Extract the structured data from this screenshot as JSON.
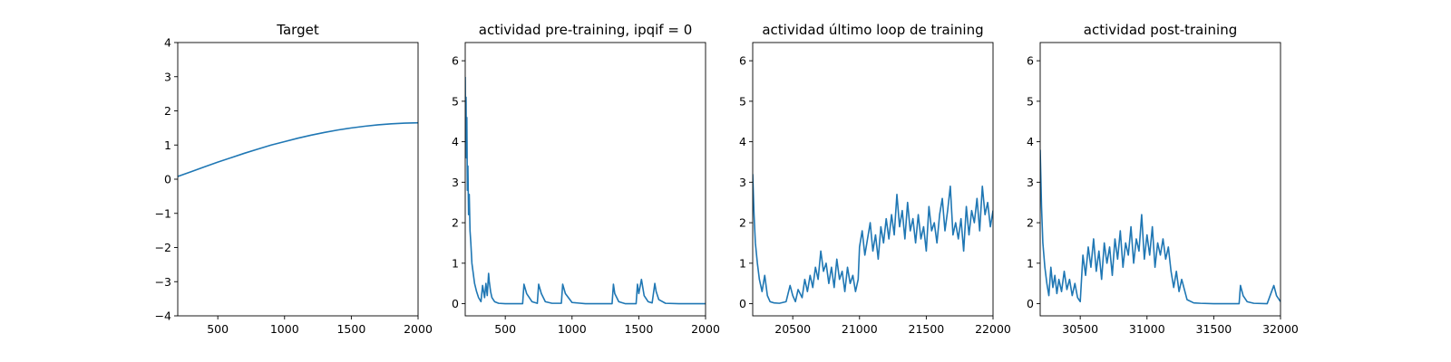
{
  "chart_data": [
    {
      "type": "line",
      "title": "Target",
      "xlim": [
        200,
        2000
      ],
      "ylim": [
        -4,
        4
      ],
      "xticks": [
        500,
        1000,
        1500,
        2000
      ],
      "yticks": [
        -4,
        -3,
        -2,
        -1,
        0,
        1,
        2,
        3,
        4
      ],
      "xtick_labels": [
        "500",
        "1000",
        "1500",
        "2000"
      ],
      "ytick_labels": [
        "−4",
        "−3",
        "−2",
        "−1",
        "0",
        "1",
        "2",
        "3",
        "4"
      ],
      "color": "#1f77b4",
      "series": [
        {
          "x": [
            200,
            300,
            400,
            500,
            600,
            700,
            800,
            900,
            1000,
            1100,
            1200,
            1300,
            1400,
            1500,
            1600,
            1700,
            1800,
            1900,
            2000
          ],
          "y": [
            0.08,
            0.22,
            0.36,
            0.5,
            0.63,
            0.76,
            0.88,
            1.0,
            1.1,
            1.2,
            1.29,
            1.37,
            1.44,
            1.5,
            1.55,
            1.59,
            1.62,
            1.64,
            1.65
          ]
        }
      ]
    },
    {
      "type": "line",
      "title": "actividad pre-training, ipqif = 0",
      "xlim": [
        200,
        2000
      ],
      "ylim": [
        -0.3,
        6.45
      ],
      "xticks": [
        500,
        1000,
        1500,
        2000
      ],
      "yticks": [
        0,
        1,
        2,
        3,
        4,
        5,
        6
      ],
      "xtick_labels": [
        "500",
        "1000",
        "1500",
        "2000"
      ],
      "ytick_labels": [
        "0",
        "1",
        "2",
        "3",
        "4",
        "5",
        "6"
      ],
      "color": "#1f77b4",
      "series": [
        {
          "x": [
            200,
            203,
            206,
            209,
            212,
            216,
            220,
            225,
            230,
            236,
            242,
            250,
            260,
            270,
            285,
            300,
            318,
            330,
            345,
            355,
            365,
            375,
            380,
            390,
            400,
            420,
            450,
            500,
            550,
            600,
            630,
            640,
            660,
            700,
            740,
            750,
            770,
            800,
            850,
            900,
            920,
            930,
            950,
            1000,
            1100,
            1200,
            1300,
            1310,
            1320,
            1350,
            1400,
            1480,
            1490,
            1500,
            1520,
            1540,
            1570,
            1600,
            1620,
            1630,
            1650,
            1700,
            1800,
            1900,
            2000
          ],
          "y": [
            5.6,
            4.0,
            5.1,
            3.6,
            4.6,
            2.8,
            3.4,
            2.2,
            2.7,
            1.8,
            1.5,
            1.0,
            0.75,
            0.5,
            0.3,
            0.15,
            0.05,
            0.45,
            0.15,
            0.5,
            0.2,
            0.75,
            0.55,
            0.3,
            0.15,
            0.05,
            0.01,
            0,
            0,
            0,
            0,
            0.48,
            0.25,
            0.05,
            0.01,
            0.48,
            0.25,
            0.05,
            0.01,
            0.01,
            0.01,
            0.48,
            0.25,
            0.03,
            0,
            0,
            0,
            0.48,
            0.25,
            0.05,
            0,
            0,
            0.48,
            0.25,
            0.6,
            0.2,
            0.05,
            0.02,
            0.5,
            0.3,
            0.1,
            0.01,
            0,
            0,
            0
          ]
        }
      ]
    },
    {
      "type": "line",
      "title": "actividad último loop de training",
      "xlim": [
        20200,
        22000
      ],
      "ylim": [
        -0.3,
        6.45
      ],
      "xticks": [
        20500,
        21000,
        21500,
        22000
      ],
      "yticks": [
        0,
        1,
        2,
        3,
        4,
        5,
        6
      ],
      "xtick_labels": [
        "20500",
        "21000",
        "21500",
        "22000"
      ],
      "ytick_labels": [
        "0",
        "1",
        "2",
        "3",
        "4",
        "5",
        "6"
      ],
      "color": "#1f77b4",
      "series": [
        {
          "x": [
            20200,
            20210,
            20220,
            20235,
            20250,
            20270,
            20290,
            20310,
            20330,
            20360,
            20400,
            20450,
            20480,
            20500,
            20520,
            20540,
            20570,
            20590,
            20610,
            20630,
            20650,
            20670,
            20690,
            20710,
            20730,
            20750,
            20770,
            20790,
            20810,
            20830,
            20850,
            20870,
            20890,
            20910,
            20930,
            20950,
            20970,
            20990,
            21000,
            21020,
            21040,
            21060,
            21080,
            21100,
            21120,
            21140,
            21160,
            21180,
            21200,
            21220,
            21240,
            21260,
            21280,
            21300,
            21320,
            21340,
            21360,
            21380,
            21400,
            21420,
            21440,
            21460,
            21480,
            21500,
            21520,
            21540,
            21560,
            21580,
            21600,
            21620,
            21640,
            21660,
            21680,
            21700,
            21720,
            21740,
            21760,
            21780,
            21800,
            21820,
            21840,
            21860,
            21880,
            21900,
            21920,
            21940,
            21960,
            21980,
            22000
          ],
          "y": [
            3.2,
            2.2,
            1.5,
            1.0,
            0.6,
            0.3,
            0.7,
            0.2,
            0.05,
            0.02,
            0.01,
            0.05,
            0.45,
            0.2,
            0.05,
            0.35,
            0.15,
            0.6,
            0.3,
            0.7,
            0.4,
            0.9,
            0.6,
            1.3,
            0.8,
            1.0,
            0.5,
            0.9,
            0.4,
            1.1,
            0.6,
            0.8,
            0.3,
            0.9,
            0.5,
            0.7,
            0.3,
            0.6,
            1.4,
            1.8,
            1.2,
            1.6,
            2.0,
            1.3,
            1.7,
            1.1,
            1.9,
            1.5,
            2.1,
            1.6,
            2.2,
            1.7,
            2.7,
            1.9,
            2.3,
            1.6,
            2.5,
            1.8,
            2.1,
            1.5,
            2.2,
            1.6,
            1.9,
            1.3,
            2.4,
            1.8,
            2.0,
            1.5,
            2.2,
            2.6,
            1.8,
            2.3,
            2.9,
            1.7,
            2.0,
            1.6,
            2.1,
            1.3,
            2.4,
            1.7,
            2.3,
            2.0,
            2.6,
            1.8,
            2.9,
            2.2,
            2.5,
            1.9,
            2.3
          ]
        }
      ]
    },
    {
      "type": "line",
      "title": "actividad post-training",
      "xlim": [
        30200,
        32000
      ],
      "ylim": [
        -0.3,
        6.45
      ],
      "xticks": [
        30500,
        31000,
        31500,
        32000
      ],
      "yticks": [
        0,
        1,
        2,
        3,
        4,
        5,
        6
      ],
      "xtick_labels": [
        "30500",
        "31000",
        "31500",
        "32000"
      ],
      "ytick_labels": [
        "0",
        "1",
        "2",
        "3",
        "4",
        "5",
        "6"
      ],
      "color": "#1f77b4",
      "series": [
        {
          "x": [
            30200,
            30210,
            30220,
            30235,
            30250,
            30265,
            30280,
            30295,
            30310,
            30325,
            30340,
            30360,
            30380,
            30400,
            30420,
            30440,
            30460,
            30480,
            30500,
            30520,
            30540,
            30560,
            30580,
            30600,
            30620,
            30640,
            30660,
            30680,
            30700,
            30720,
            30740,
            30760,
            30780,
            30800,
            30820,
            30840,
            30860,
            30880,
            30900,
            30920,
            30940,
            30960,
            30980,
            31000,
            31020,
            31040,
            31060,
            31080,
            31100,
            31120,
            31140,
            31160,
            31180,
            31200,
            31220,
            31240,
            31260,
            31300,
            31350,
            31400,
            31500,
            31600,
            31690,
            31700,
            31720,
            31750,
            31800,
            31900,
            31950,
            31970,
            32000
          ],
          "y": [
            3.8,
            2.4,
            1.5,
            0.9,
            0.5,
            0.2,
            0.9,
            0.4,
            0.7,
            0.25,
            0.6,
            0.3,
            0.8,
            0.35,
            0.6,
            0.2,
            0.5,
            0.15,
            0.05,
            1.2,
            0.7,
            1.4,
            0.9,
            1.6,
            0.8,
            1.3,
            0.6,
            1.5,
            1.0,
            1.4,
            0.7,
            1.6,
            1.1,
            1.8,
            0.9,
            1.5,
            1.2,
            1.9,
            1.0,
            1.6,
            1.3,
            2.2,
            1.1,
            1.7,
            1.2,
            1.9,
            0.9,
            1.5,
            1.2,
            1.6,
            1.1,
            1.4,
            0.8,
            0.4,
            0.8,
            0.3,
            0.6,
            0.1,
            0.02,
            0.01,
            0,
            0,
            0,
            0.45,
            0.2,
            0.05,
            0.01,
            0,
            0.45,
            0.2,
            0.05
          ]
        }
      ]
    }
  ]
}
